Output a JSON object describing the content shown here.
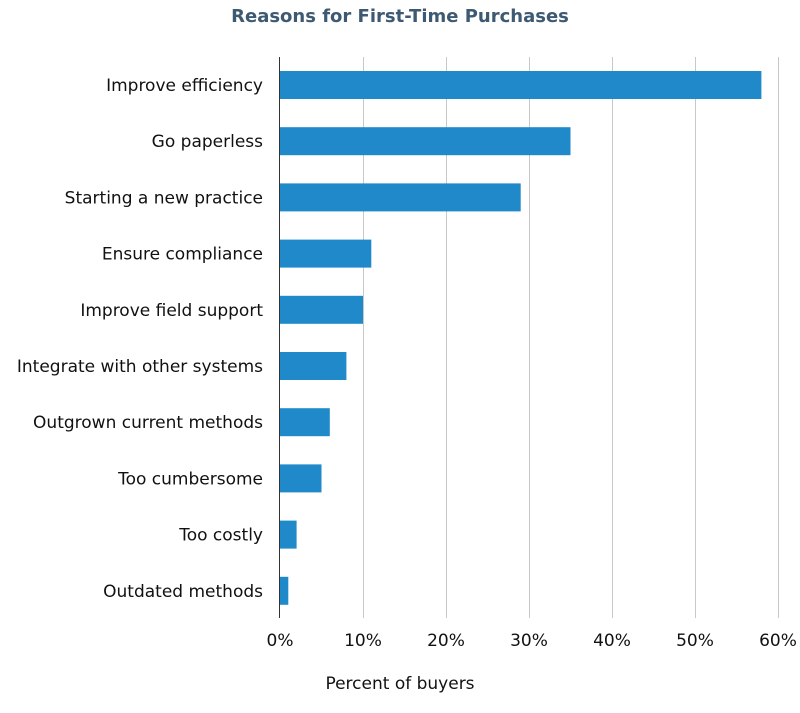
{
  "chart_data": {
    "type": "bar",
    "orientation": "horizontal",
    "title": "Reasons for First-Time Purchases",
    "xlabel": "Percent of buyers",
    "ylabel": "",
    "categories": [
      "Improve efficiency",
      "Go paperless",
      "Starting a new practice",
      "Ensure compliance",
      "Improve field support",
      "Integrate with other systems",
      "Outgrown current methods",
      "Too cumbersome",
      "Too costly",
      "Outdated methods"
    ],
    "values": [
      58,
      35,
      29,
      11,
      10,
      8,
      6,
      5,
      2,
      1
    ],
    "xlim": [
      0,
      60
    ],
    "x_ticks": [
      0,
      10,
      20,
      30,
      40,
      50,
      60
    ],
    "x_tick_labels": [
      "0%",
      "10%",
      "20%",
      "30%",
      "40%",
      "50%",
      "60%"
    ],
    "grid": "vertical",
    "legend": "none",
    "colors": {
      "bar": "#1f89c9",
      "grid": "#c8c8c8",
      "axis": "#333333",
      "title": "#3e5a73",
      "text": "#111111"
    }
  }
}
